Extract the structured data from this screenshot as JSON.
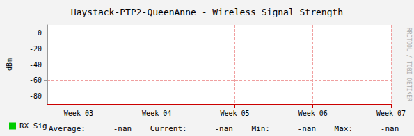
{
  "chart_data": {
    "type": "line",
    "title": "Haystack-PTP2-QueenAnne - Wireless Signal Strength",
    "y_label": "dBm",
    "x": [
      3,
      4,
      5,
      6,
      7
    ],
    "series": [
      {
        "name": "RX Sig",
        "color": "#00cc00",
        "values": [
          null,
          null,
          null,
          null,
          null
        ]
      }
    ],
    "xlim": [
      2.6,
      7.0
    ],
    "xticks": [
      {
        "value": 3,
        "label": "Week 03"
      },
      {
        "value": 4,
        "label": "Week 04"
      },
      {
        "value": 5,
        "label": "Week 05"
      },
      {
        "value": 6,
        "label": "Week 06"
      },
      {
        "value": 7,
        "label": "Week 07"
      }
    ],
    "ylim": [
      -90,
      10
    ],
    "yticks": [
      -80,
      -60,
      -40,
      -20,
      0
    ],
    "grid": true,
    "legend": "bottom-left",
    "stats": [
      [
        "Average:",
        "-nan"
      ],
      [
        "Current:",
        "-nan"
      ],
      [
        "Min:",
        "-nan"
      ],
      [
        "Max:",
        "-nan"
      ]
    ],
    "annotations": [
      "RRDTOOL / TOBI OETIKER"
    ]
  }
}
